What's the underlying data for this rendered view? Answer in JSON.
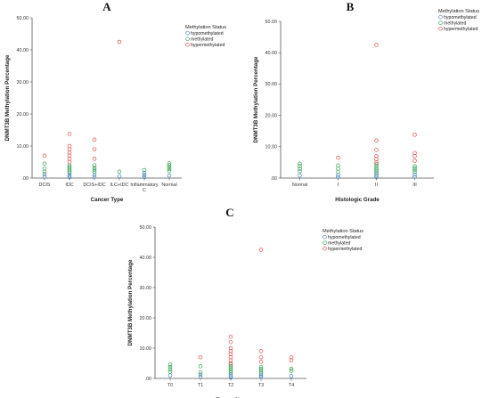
{
  "chart_data": [
    {
      "type": "scatter",
      "panel_label": "A",
      "title": "",
      "xlabel": "Cancer Type",
      "ylabel": "DNMT3B Methylation Percentage",
      "categories": [
        "DCIS",
        "IDC",
        "DCIS+IDC",
        "ILC+IDC",
        "Inflammatory C",
        "Normal"
      ],
      "ylim": [
        0,
        50
      ],
      "yticks": [
        0,
        10,
        20,
        30,
        40,
        50
      ],
      "ytick_labels": [
        ".00",
        "10.00",
        "20.00",
        "30.00",
        "40.00",
        "50.00"
      ],
      "legend": {
        "title": "Methylation Status",
        "position": "top-right",
        "entries": [
          {
            "label": "hypomethylated",
            "color": "#4a87b8"
          },
          {
            "label": "methylated",
            "color": "#3aa35a"
          },
          {
            "label": "hypermethylated",
            "color": "#e05050"
          }
        ]
      },
      "series": [
        {
          "name": "hypomethylated",
          "color": "#4a87b8",
          "points": [
            [
              0,
              0.5
            ],
            [
              0,
              1.2
            ],
            [
              1,
              0.3
            ],
            [
              1,
              0.8
            ],
            [
              1,
              1.5
            ],
            [
              2,
              0.4
            ],
            [
              2,
              1.0
            ],
            [
              3,
              0.6
            ],
            [
              4,
              0.3
            ],
            [
              4,
              0.9
            ],
            [
              4,
              1.6
            ],
            [
              5,
              0.8
            ]
          ]
        },
        {
          "name": "methylated",
          "color": "#3aa35a",
          "points": [
            [
              0,
              2.0
            ],
            [
              0,
              3.0
            ],
            [
              0,
              4.5
            ],
            [
              1,
              2.0
            ],
            [
              1,
              2.5
            ],
            [
              1,
              3.0
            ],
            [
              1,
              3.5
            ],
            [
              1,
              4.0
            ],
            [
              2,
              2.0
            ],
            [
              2,
              2.6
            ],
            [
              2,
              3.2
            ],
            [
              2,
              4.0
            ],
            [
              3,
              2.0
            ],
            [
              4,
              2.5
            ],
            [
              5,
              2.2
            ],
            [
              5,
              2.8
            ],
            [
              5,
              3.4
            ],
            [
              5,
              4.0
            ],
            [
              5,
              4.6
            ]
          ]
        },
        {
          "name": "hypermethylated",
          "color": "#e05050",
          "points": [
            [
              0,
              7.0
            ],
            [
              1,
              5.0
            ],
            [
              1,
              6.0
            ],
            [
              1,
              7.0
            ],
            [
              1,
              8.0
            ],
            [
              1,
              9.0
            ],
            [
              1,
              10.0
            ],
            [
              1,
              13.8
            ],
            [
              2,
              6.0
            ],
            [
              2,
              9.0
            ],
            [
              2,
              12.0
            ],
            [
              3,
              42.5
            ]
          ]
        }
      ]
    },
    {
      "type": "scatter",
      "panel_label": "B",
      "title": "",
      "xlabel": "Histologic Grade",
      "ylabel": "DNMT3B Methylation Percentage",
      "categories": [
        "Normal",
        "I",
        "II",
        "III"
      ],
      "ylim": [
        0,
        50
      ],
      "yticks": [
        0,
        10,
        20,
        30,
        40,
        50
      ],
      "ytick_labels": [
        ".00",
        "10.00",
        "20.00",
        "30.00",
        "40.00",
        "50.00"
      ],
      "legend": {
        "title": "Methylation Status",
        "position": "top-right",
        "entries": [
          {
            "label": "hypomethylated",
            "color": "#4a87b8"
          },
          {
            "label": "methylated",
            "color": "#3aa35a"
          },
          {
            "label": "hypermethylated",
            "color": "#e05050"
          }
        ]
      },
      "series": [
        {
          "name": "hypomethylated",
          "color": "#4a87b8",
          "points": [
            [
              0,
              0.8
            ],
            [
              1,
              0.4
            ],
            [
              1,
              1.0
            ],
            [
              2,
              0.3
            ],
            [
              2,
              0.8
            ],
            [
              2,
              1.4
            ],
            [
              3,
              0.4
            ],
            [
              3,
              1.1
            ]
          ]
        },
        {
          "name": "methylated",
          "color": "#3aa35a",
          "points": [
            [
              0,
              2.2
            ],
            [
              0,
              3.0
            ],
            [
              0,
              3.8
            ],
            [
              0,
              4.6
            ],
            [
              1,
              2.0
            ],
            [
              1,
              3.0
            ],
            [
              1,
              4.0
            ],
            [
              2,
              2.0
            ],
            [
              2,
              2.6
            ],
            [
              2,
              3.2
            ],
            [
              2,
              3.8
            ],
            [
              2,
              4.4
            ],
            [
              3,
              2.0
            ],
            [
              3,
              2.6
            ],
            [
              3,
              3.2
            ],
            [
              3,
              3.8
            ]
          ]
        },
        {
          "name": "hypermethylated",
          "color": "#e05050",
          "points": [
            [
              1,
              6.5
            ],
            [
              2,
              5.0
            ],
            [
              2,
              6.0
            ],
            [
              2,
              7.0
            ],
            [
              2,
              9.0
            ],
            [
              2,
              12.0
            ],
            [
              2,
              42.5
            ],
            [
              3,
              5.5
            ],
            [
              3,
              7.0
            ],
            [
              3,
              8.0
            ],
            [
              3,
              13.8
            ]
          ]
        }
      ]
    },
    {
      "type": "scatter",
      "panel_label": "C",
      "title": "",
      "xlabel": "Tumor Size",
      "ylabel": "DNMT3B Methylation Percentage",
      "categories": [
        "T0",
        "T1",
        "T2",
        "T3",
        "T4"
      ],
      "ylim": [
        0,
        50
      ],
      "yticks": [
        0,
        10,
        20,
        30,
        40,
        50
      ],
      "ytick_labels": [
        ".00",
        "10.00",
        "20.00",
        "30.00",
        "40.00",
        "50.00"
      ],
      "legend": {
        "title": "Methylation Status",
        "position": "top-right",
        "entries": [
          {
            "label": "hypomethylated",
            "color": "#4a87b8"
          },
          {
            "label": "methylated",
            "color": "#3aa35a"
          },
          {
            "label": "hypermethylated",
            "color": "#e05050"
          }
        ]
      },
      "series": [
        {
          "name": "hypomethylated",
          "color": "#4a87b8",
          "points": [
            [
              0,
              1.0
            ],
            [
              1,
              0.5
            ],
            [
              1,
              1.2
            ],
            [
              2,
              0.3
            ],
            [
              2,
              0.8
            ],
            [
              2,
              1.4
            ],
            [
              3,
              0.4
            ],
            [
              3,
              1.0
            ],
            [
              3,
              1.6
            ],
            [
              4,
              0.8
            ]
          ]
        },
        {
          "name": "methylated",
          "color": "#3aa35a",
          "points": [
            [
              0,
              2.2
            ],
            [
              0,
              3.0
            ],
            [
              0,
              3.8
            ],
            [
              0,
              4.6
            ],
            [
              1,
              2.0
            ],
            [
              1,
              4.0
            ],
            [
              2,
              2.0
            ],
            [
              2,
              2.5
            ],
            [
              2,
              3.0
            ],
            [
              2,
              3.5
            ],
            [
              2,
              4.0
            ],
            [
              2,
              4.6
            ],
            [
              3,
              2.0
            ],
            [
              3,
              2.6
            ],
            [
              3,
              3.2
            ],
            [
              3,
              3.8
            ],
            [
              4,
              2.5
            ],
            [
              4,
              3.2
            ]
          ]
        },
        {
          "name": "hypermethylated",
          "color": "#e05050",
          "points": [
            [
              1,
              7.0
            ],
            [
              2,
              5.0
            ],
            [
              2,
              6.0
            ],
            [
              2,
              7.0
            ],
            [
              2,
              8.0
            ],
            [
              2,
              9.0
            ],
            [
              2,
              10.0
            ],
            [
              2,
              12.0
            ],
            [
              2,
              13.8
            ],
            [
              3,
              5.5
            ],
            [
              3,
              7.0
            ],
            [
              3,
              9.0
            ],
            [
              3,
              42.5
            ],
            [
              4,
              6.0
            ],
            [
              4,
              7.0
            ]
          ]
        }
      ]
    }
  ]
}
